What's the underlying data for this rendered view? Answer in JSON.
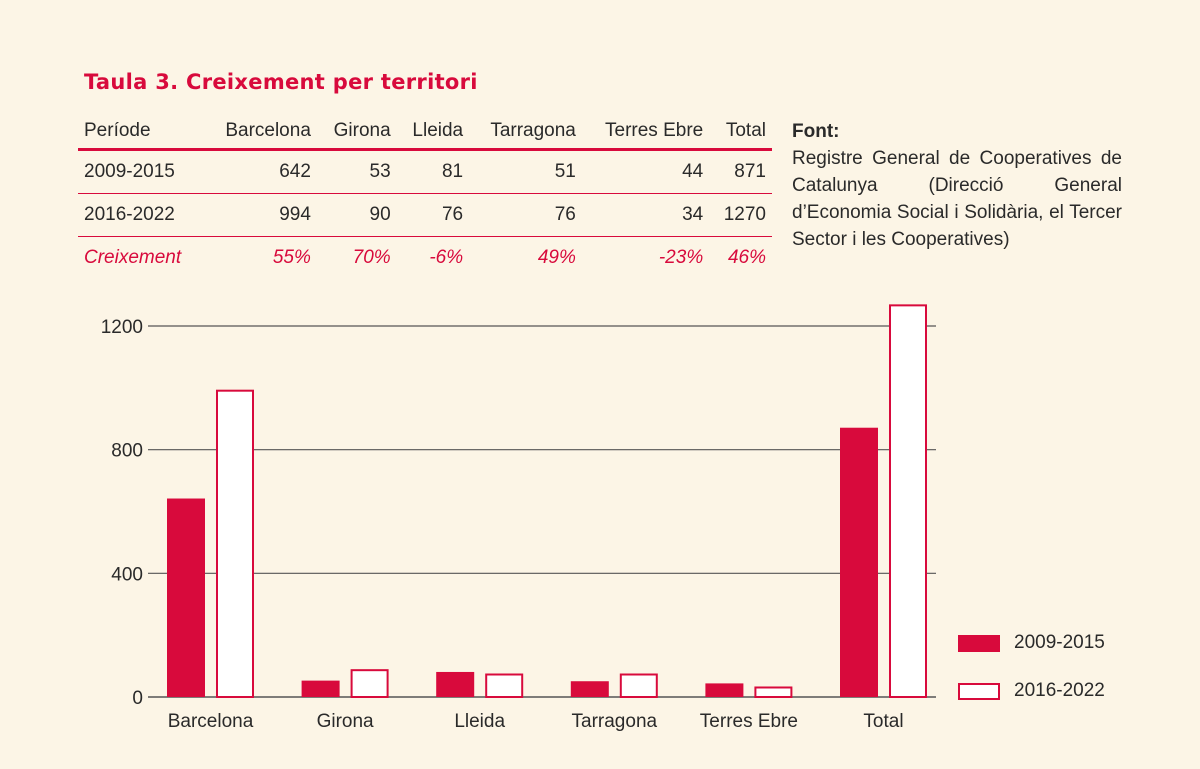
{
  "title": "Taula 3. Creixement per territori",
  "table": {
    "headers": [
      "Període",
      "Barcelona",
      "Girona",
      "Lleida",
      "Tarragona",
      "Terres Ebre",
      "Total"
    ],
    "rows": [
      [
        "2009-2015",
        "642",
        "53",
        "81",
        "51",
        "44",
        "871"
      ],
      [
        "2016-2022",
        "994",
        "90",
        "76",
        "76",
        "34",
        "1270"
      ]
    ],
    "growth_row": [
      "Creixement",
      "55%",
      "70%",
      "-6%",
      "49%",
      "-23%",
      "46%"
    ]
  },
  "source": {
    "heading": "Font:",
    "text": "Registre General de Cooperatives de Catalunya (Direcció General d’Economia Social i Solidària, el Tercer Sector i les Cooperatives)"
  },
  "colors": {
    "accent": "#d80a3c",
    "background": "#fcf5e6",
    "grid": "#555555"
  },
  "chart_data": {
    "type": "bar",
    "categories": [
      "Barcelona",
      "Girona",
      "Lleida",
      "Tarragona",
      "Terres Ebre",
      "Total"
    ],
    "series": [
      {
        "name": "2009-2015",
        "values": [
          642,
          53,
          81,
          51,
          44,
          871
        ],
        "style": "filled"
      },
      {
        "name": "2016-2022",
        "values": [
          994,
          90,
          76,
          76,
          34,
          1270
        ],
        "style": "outline"
      }
    ],
    "yticks": [
      0,
      400,
      800,
      1200
    ],
    "ylim": [
      0,
      1200
    ],
    "grid": true,
    "legend": "bottom-right"
  }
}
